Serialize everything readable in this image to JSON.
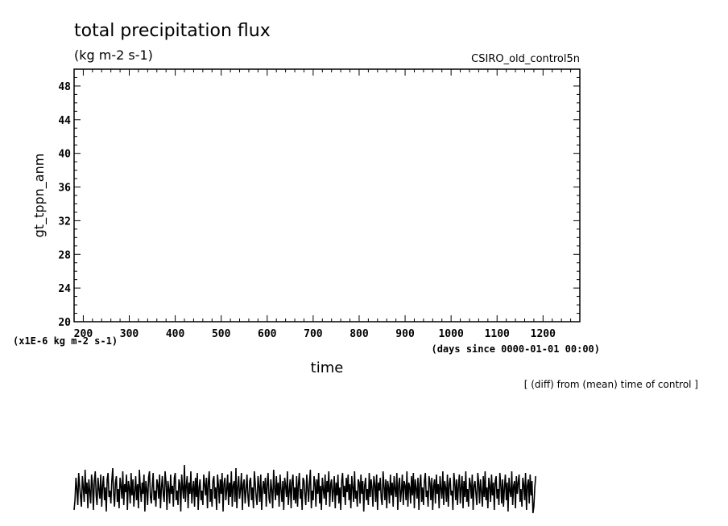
{
  "chart_data": {
    "type": "line",
    "title": "total precipitation flux",
    "subtitle": "(kg m-2 s-1)",
    "dataset_label": "CSIRO_old_control5n",
    "xlabel": "time",
    "x_units": "(days since 0000-01-01 00:00)",
    "ylabel": "gt_tppn_anm",
    "y_units": "(x1E-6 kg m-2 s-1)",
    "note": "[ (diff) from (mean) time of control ]",
    "xlim": [
      180,
      1280
    ],
    "ylim": [
      20,
      50
    ],
    "x_ticks": [
      200,
      300,
      400,
      500,
      600,
      700,
      800,
      900,
      1000,
      1100,
      1200
    ],
    "y_ticks": [
      20,
      24,
      28,
      32,
      36,
      40,
      44,
      48
    ],
    "grid": false,
    "series_x_start": 180,
    "series_x_step": 2,
    "series": [
      {
        "values": [
          -1.2,
          -0.6,
          0.8,
          0.1,
          -0.9,
          1.1,
          0.3,
          -0.4,
          -1.0,
          0.9,
          0.2,
          -0.7,
          1.3,
          -0.2,
          0.5,
          -1.1,
          0.7,
          0.0,
          -0.8,
          1.0,
          0.4,
          -1.2,
          0.6,
          1.2,
          -0.3,
          -0.9,
          0.8,
          0.1,
          -0.5,
          1.0,
          -1.0,
          0.3,
          0.9,
          -0.6,
          0.2,
          -1.3,
          0.7,
          1.1,
          -0.4,
          0.0,
          -0.8,
          0.6,
          1.4,
          -0.2,
          -1.0,
          0.5,
          0.9,
          -0.7,
          0.1,
          -1.1,
          0.8,
          0.3,
          -0.5,
          1.2,
          -0.9,
          0.4,
          -0.1,
          1.0,
          -1.2,
          0.6,
          0.2,
          -0.8,
          1.1,
          -0.3,
          0.7,
          -1.0,
          0.0,
          0.9,
          -0.6,
          0.4,
          -1.1,
          1.3,
          0.2,
          -0.7,
          0.5,
          -0.2,
          1.0,
          -1.3,
          0.6,
          0.1,
          -0.9,
          0.8,
          1.2,
          -0.4,
          -0.8,
          0.3,
          1.1,
          -0.6,
          0.0,
          -1.0,
          0.7,
          0.4,
          -0.5,
          1.0,
          -1.1,
          0.2,
          0.9,
          -0.3,
          -0.7,
          1.2,
          0.5,
          -1.2,
          0.6,
          0.1,
          -0.8,
          1.0,
          -0.2,
          0.3,
          -1.0,
          0.8,
          1.1,
          -0.6,
          0.0,
          -0.9,
          0.7,
          0.4,
          -1.3,
          1.0,
          0.2,
          -0.5,
          1.6,
          -0.7,
          0.3,
          0.9,
          -1.1,
          0.5,
          -0.2,
          1.2,
          -0.8,
          0.1,
          0.6,
          -1.0,
          0.8,
          -0.4,
          1.1,
          -1.2,
          0.2,
          0.7,
          -0.6,
          0.0,
          -0.9,
          1.0,
          0.4,
          -0.3,
          0.8,
          -1.1,
          0.5,
          1.2,
          -0.7,
          0.1,
          -1.0,
          0.6,
          0.9,
          -0.5,
          0.2,
          -1.2,
          1.0,
          0.3,
          -0.8,
          0.7,
          -0.2,
          1.1,
          -1.3,
          0.4,
          0.8,
          -0.6,
          0.0,
          1.0,
          -0.9,
          0.5,
          -0.4,
          1.2,
          -1.0,
          0.3,
          0.6,
          -0.7,
          1.4,
          -1.1,
          0.2,
          0.9,
          -0.5,
          0.1,
          1.1,
          -1.2,
          0.4,
          0.7,
          -0.8,
          0.0,
          1.0,
          -0.3,
          -1.0,
          0.6,
          0.8,
          -0.6,
          0.2,
          -1.1,
          1.2,
          0.5,
          -0.4,
          -0.9,
          0.9,
          0.3,
          -0.7,
          1.0,
          -1.2,
          0.1,
          0.6,
          -0.2,
          0.8,
          -1.0,
          0.4,
          1.1,
          -0.5,
          -0.8,
          0.7,
          0.0,
          -1.1,
          1.3,
          0.2,
          -0.6,
          0.9,
          -0.3,
          0.5,
          -1.0,
          1.0,
          0.1,
          -0.7,
          0.6,
          -1.2,
          0.8,
          0.3,
          -0.4,
          1.2,
          -0.9,
          0.0,
          0.7,
          -1.1,
          0.5,
          1.0,
          -0.6,
          0.2,
          -0.8,
          0.9,
          -1.0,
          0.4,
          1.1,
          -0.5,
          0.1,
          -1.2,
          0.8,
          0.6,
          -0.3,
          -0.9,
          1.0,
          0.2,
          -0.7,
          0.5,
          1.3,
          -1.1,
          0.0,
          -0.6,
          0.9,
          0.4,
          -1.0,
          0.7,
          -0.2,
          1.1,
          -0.8,
          0.3,
          -1.2,
          0.8,
          0.1,
          -0.5,
          1.0,
          -0.9,
          0.6,
          -0.1,
          1.2,
          -1.0,
          0.4,
          0.7,
          -0.7,
          0.0,
          0.9,
          -1.1,
          0.5,
          -0.3,
          1.0,
          -0.8,
          0.2,
          -1.2,
          0.6,
          1.1,
          -0.4,
          0.3,
          -0.9,
          0.8,
          -0.1,
          1.0,
          -0.6,
          0.4,
          -1.1,
          0.9,
          0.2,
          -0.7,
          1.2,
          -0.5,
          0.0,
          -1.0,
          0.7,
          0.5,
          -0.8,
          1.0,
          -0.2,
          0.6,
          -1.3,
          0.3,
          0.8,
          -0.6,
          0.1,
          -0.9,
          1.1,
          -0.4,
          0.7,
          0.2,
          -1.0,
          0.9,
          0.4,
          -0.7,
          1.0,
          -1.2,
          0.5,
          0.0,
          0.8,
          -0.5,
          -0.9,
          1.2,
          0.3,
          -0.6,
          0.7,
          -1.1,
          0.6,
          0.2,
          -0.8,
          1.0,
          -0.3,
          0.5,
          -1.0,
          0.9,
          0.1,
          -0.4,
          1.1,
          -1.2,
          0.4,
          0.8,
          -0.7,
          0.0,
          1.0,
          -0.9,
          0.6,
          0.3,
          -0.6,
          1.2,
          -1.0,
          0.5,
          0.2,
          -0.8,
          0.9,
          -0.3,
          1.1,
          -1.1,
          0.7,
          0.1,
          -0.5,
          0.8,
          -1.2,
          0.4,
          1.0,
          -0.7,
          0.2,
          -0.9,
          0.6,
          1.1,
          -0.4,
          0.0,
          -1.0,
          0.9,
          0.5,
          -0.6,
          0.8,
          -1.2,
          0.3,
          0.7,
          -0.8,
          1.0,
          -0.2,
          0.4,
          -1.1,
          0.9,
          0.1,
          -0.5,
          1.2,
          -0.9,
          0.6,
          0.2,
          -0.7,
          1.0,
          -1.0,
          0.4,
          0.8,
          -0.3,
          0.0,
          -1.2,
          1.1,
          0.5,
          -0.6,
          0.7,
          -0.9,
          0.3,
          1.0,
          -0.8,
          0.2,
          0.9,
          -1.1,
          0.6,
          -0.4,
          1.2,
          -0.7,
          0.1,
          -1.0,
          0.8,
          0.4,
          -0.5,
          1.0,
          -1.2,
          0.3,
          0.6,
          -0.2,
          -0.9,
          1.1,
          0.5,
          -0.8,
          0.7,
          0.0,
          -1.0,
          0.9,
          -0.4,
          1.2,
          -0.6,
          0.2,
          -1.1,
          0.8,
          0.3,
          -0.7,
          1.0,
          -0.3,
          0.5,
          -1.2,
          0.6,
          0.9,
          -0.5,
          0.1,
          -0.9,
          1.1,
          0.4,
          -0.8,
          0.7,
          -1.0,
          0.2,
          1.0,
          -0.6,
          0.5,
          -1.3,
          0.8,
          0.0,
          -0.4,
          1.2,
          -0.9,
          0.3,
          0.6,
          -1.1,
          0.9,
          -0.2,
          0.5,
          1.0,
          -0.7,
          0.1,
          -1.0,
          0.8,
          0.4,
          -0.6,
          1.1,
          -1.2,
          0.3,
          0.7,
          -0.8,
          1.0,
          -0.3,
          0.6,
          -1.4,
          -1.0,
          0.2,
          0.9
        ]
      }
    ]
  }
}
